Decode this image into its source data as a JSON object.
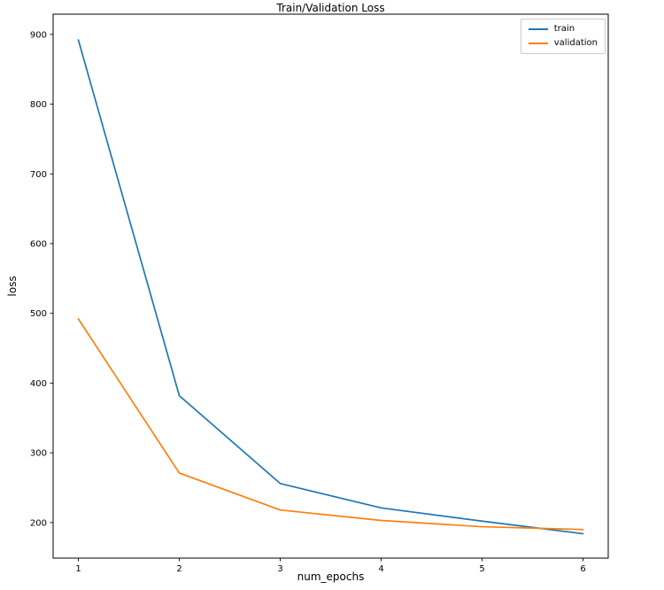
{
  "chart_data": {
    "type": "line",
    "title": "Train/Validation Loss",
    "xlabel": "num_epochs",
    "ylabel": "loss",
    "x": [
      1,
      2,
      3,
      4,
      5,
      6
    ],
    "series": [
      {
        "name": "train",
        "color": "#1f77b4",
        "values": [
          892,
          382,
          256,
          221,
          202,
          184
        ]
      },
      {
        "name": "validation",
        "color": "#ff7f0e",
        "values": [
          492,
          271,
          218,
          203,
          194,
          190
        ]
      }
    ],
    "xticks": [
      1,
      2,
      3,
      4,
      5,
      6
    ],
    "yticks": [
      200,
      300,
      400,
      500,
      600,
      700,
      800,
      900
    ],
    "xlim": [
      0.75,
      6.25
    ],
    "ylim": [
      149,
      929
    ],
    "grid": false,
    "legend_position": "upper right",
    "line_width": 1.7,
    "spine_color": "#000000",
    "text_color": "#000000",
    "background": "#ffffff"
  }
}
